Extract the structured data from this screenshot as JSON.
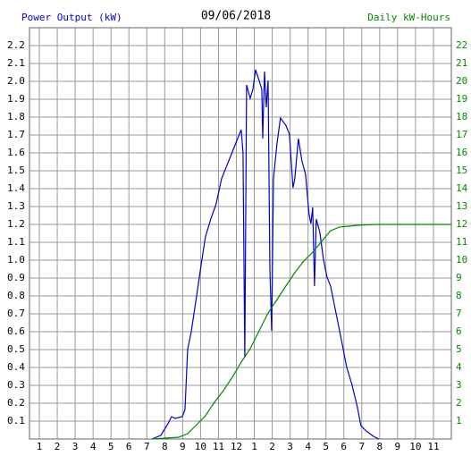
{
  "chart_data": {
    "type": "line",
    "title": "09/06/2018",
    "ylabel": "Power Output (kW)",
    "y2label": "Daily kW-Hours",
    "xlim": [
      0.45,
      24
    ],
    "xticks": [
      1,
      2,
      3,
      4,
      5,
      6,
      7,
      8,
      9,
      10,
      11,
      12,
      {
        "value": 13,
        "label": "1"
      },
      {
        "value": 14,
        "label": "2"
      },
      {
        "value": 15,
        "label": "3"
      },
      {
        "value": 16,
        "label": "4"
      },
      {
        "value": 17,
        "label": "5"
      },
      {
        "value": 18,
        "label": "6"
      },
      {
        "value": 19,
        "label": "7"
      },
      {
        "value": 20,
        "label": "8"
      },
      {
        "value": 21,
        "label": "9"
      },
      {
        "value": 22,
        "label": "10"
      },
      {
        "value": 23,
        "label": "11"
      }
    ],
    "ylim": [
      0,
      2.3
    ],
    "yticks": [
      0.1,
      0.2,
      0.3,
      0.4,
      0.5,
      0.6,
      0.7,
      0.8,
      0.9,
      {
        "value": 1.0,
        "label": "1.0"
      },
      1.1,
      1.2,
      1.3,
      1.4,
      1.5,
      1.6,
      1.7,
      1.8,
      1.9,
      {
        "value": 2.0,
        "label": "2.0"
      },
      2.1,
      2.2
    ],
    "y2lim": [
      0,
      23
    ],
    "y2ticks": [
      1,
      2,
      3,
      4,
      5,
      6,
      7,
      8,
      9,
      10,
      11,
      12,
      13,
      14,
      15,
      16,
      17,
      18,
      19,
      20,
      21,
      22
    ],
    "grid": true,
    "series": [
      {
        "color": "#0000cc",
        "axis": "y",
        "x": [
          7.28,
          7.78,
          8.18,
          8.38,
          8.58,
          8.98,
          9.13,
          9.28,
          9.48,
          9.78,
          10.07,
          10.27,
          10.57,
          10.87,
          11.17,
          11.57,
          11.97,
          12.27,
          12.37,
          12.47,
          12.57,
          12.77,
          12.92,
          13.07,
          13.27,
          13.42,
          13.47,
          13.57,
          13.67,
          13.77,
          13.87,
          13.97,
          14.07,
          14.27,
          14.46,
          14.76,
          14.96,
          15.16,
          15.26,
          15.46,
          15.66,
          15.86,
          16.06,
          16.16,
          16.26,
          16.36,
          16.46,
          16.66,
          16.86,
          17.06,
          17.26,
          17.56,
          17.86,
          18.15,
          18.45,
          18.75,
          18.95,
          19.25,
          19.65,
          19.95
        ],
        "values": [
          0,
          0.02,
          0.085,
          0.125,
          0.115,
          0.125,
          0.165,
          0.5,
          0.6,
          0.8,
          1.0,
          1.13,
          1.23,
          1.315,
          1.455,
          1.555,
          1.655,
          1.73,
          1.6,
          0.455,
          1.98,
          1.905,
          1.955,
          2.065,
          2.005,
          1.955,
          1.68,
          2.055,
          1.855,
          2.005,
          0.955,
          0.605,
          1.455,
          1.655,
          1.795,
          1.755,
          1.705,
          1.405,
          1.455,
          1.68,
          1.555,
          1.48,
          1.255,
          1.205,
          1.295,
          0.855,
          1.23,
          1.155,
          1.005,
          0.905,
          0.855,
          0.705,
          0.555,
          0.405,
          0.305,
          0.18,
          0.075,
          0.045,
          0.015,
          0
        ]
      },
      {
        "color": "#008800",
        "axis": "y2",
        "x": [
          7.28,
          8.78,
          9.28,
          9.78,
          10.27,
          10.77,
          11.27,
          11.77,
          12.27,
          12.77,
          13.27,
          13.77,
          14.27,
          14.76,
          15.26,
          15.76,
          16.26,
          16.76,
          17.26,
          17.76,
          18.75,
          19.75,
          24
        ],
        "values": [
          0,
          0.1,
          0.3,
          0.8,
          1.3,
          2.05,
          2.7,
          3.45,
          4.3,
          5.05,
          6.05,
          7.05,
          7.8,
          8.55,
          9.3,
          9.95,
          10.45,
          11.05,
          11.65,
          11.85,
          11.95,
          12.0,
          12.0
        ]
      }
    ]
  }
}
